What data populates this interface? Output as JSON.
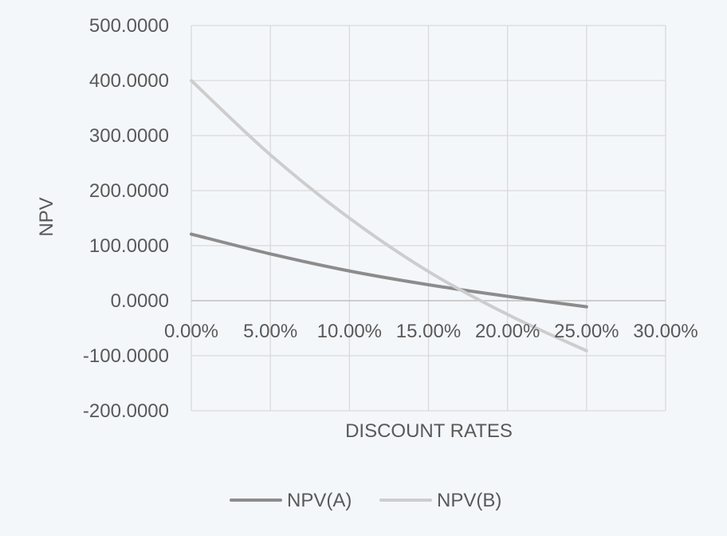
{
  "chart_data": {
    "type": "line",
    "title": "",
    "xlabel": "DISCOUNT RATES",
    "ylabel": "NPV",
    "xlim": [
      0,
      0.3
    ],
    "ylim": [
      -200,
      500
    ],
    "x_ticks": [
      0,
      0.05,
      0.1,
      0.15,
      0.2,
      0.25,
      0.3
    ],
    "x_tick_labels": [
      "0.00%",
      "5.00%",
      "10.00%",
      "15.00%",
      "20.00%",
      "25.00%",
      "30.00%"
    ],
    "y_ticks": [
      500,
      400,
      300,
      200,
      100,
      0,
      -100,
      -200
    ],
    "y_tick_labels": [
      "500.0000",
      "400.0000",
      "300.0000",
      "200.0000",
      "100.0000",
      "0.0000",
      "-100.0000",
      "-200.0000"
    ],
    "grid": true,
    "legend_position": "bottom",
    "series": [
      {
        "name": "NPV(A)",
        "color": "#8c8c8c",
        "x": [
          0,
          0.05,
          0.1,
          0.15,
          0.2,
          0.25
        ],
        "values": [
          121,
          85,
          54,
          29,
          8,
          -11
        ]
      },
      {
        "name": "NPV(B)",
        "color": "#cdcdcd",
        "x": [
          0,
          0.05,
          0.1,
          0.15,
          0.2,
          0.25
        ],
        "values": [
          400,
          265,
          150,
          53,
          -25,
          -91
        ]
      }
    ]
  }
}
